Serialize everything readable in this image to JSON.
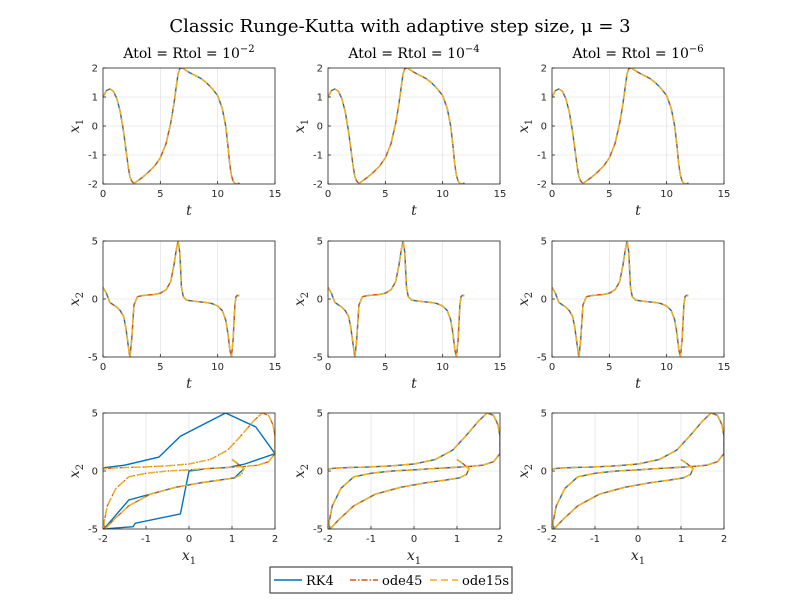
{
  "figure": {
    "title": "Classic Runge-Kutta with adaptive step size, μ = 3"
  },
  "colors": {
    "RK4": "#0072BD",
    "ode45": "#D95319",
    "ode15s": "#EDB120",
    "grid": "#dcdcdc",
    "axis": "#262626"
  },
  "legend": {
    "placement": "bottom-center",
    "entries": [
      {
        "label": "RK4",
        "style": "solid"
      },
      {
        "label": "ode45",
        "style": "dash-dot"
      },
      {
        "label": "ode15s",
        "style": "dashed"
      }
    ]
  },
  "chart_data": [
    {
      "type": "line",
      "column_title": "Atol = Rtol = 10",
      "column_title_exp": "−2",
      "xlabel": "t",
      "ylabel": "x1",
      "xlim": [
        0,
        15
      ],
      "ylim": [
        -2,
        2
      ],
      "xticks": [
        0,
        5,
        10,
        15
      ],
      "yticks": [
        -2,
        -1,
        0,
        1,
        2
      ],
      "grid": true,
      "series_source": "x1(t)",
      "coarse_rk4": false
    },
    {
      "type": "line",
      "column_title": "Atol = Rtol = 10",
      "column_title_exp": "−4",
      "xlabel": "t",
      "ylabel": "x1",
      "xlim": [
        0,
        15
      ],
      "ylim": [
        -2,
        2
      ],
      "xticks": [
        0,
        5,
        10,
        15
      ],
      "yticks": [
        -2,
        -1,
        0,
        1,
        2
      ],
      "grid": true,
      "series_source": "x1(t)",
      "coarse_rk4": false
    },
    {
      "type": "line",
      "column_title": "Atol = Rtol = 10",
      "column_title_exp": "−6",
      "xlabel": "t",
      "ylabel": "x1",
      "xlim": [
        0,
        15
      ],
      "ylim": [
        -2,
        2
      ],
      "xticks": [
        0,
        5,
        10,
        15
      ],
      "yticks": [
        -2,
        -1,
        0,
        1,
        2
      ],
      "grid": true,
      "series_source": "x1(t)",
      "coarse_rk4": false
    },
    {
      "type": "line",
      "xlabel": "t",
      "ylabel": "x2",
      "xlim": [
        0,
        15
      ],
      "ylim": [
        -5,
        5
      ],
      "xticks": [
        0,
        5,
        10,
        15
      ],
      "yticks": [
        -5,
        0,
        5
      ],
      "grid": true,
      "series_source": "x2(t)",
      "coarse_rk4": false
    },
    {
      "type": "line",
      "xlabel": "t",
      "ylabel": "x2",
      "xlim": [
        0,
        15
      ],
      "ylim": [
        -5,
        5
      ],
      "xticks": [
        0,
        5,
        10,
        15
      ],
      "yticks": [
        -5,
        0,
        5
      ],
      "grid": true,
      "series_source": "x2(t)",
      "coarse_rk4": false
    },
    {
      "type": "line",
      "xlabel": "t",
      "ylabel": "x2",
      "xlim": [
        0,
        15
      ],
      "ylim": [
        -5,
        5
      ],
      "xticks": [
        0,
        5,
        10,
        15
      ],
      "yticks": [
        -5,
        0,
        5
      ],
      "grid": true,
      "series_source": "x2(t)",
      "coarse_rk4": false
    },
    {
      "type": "line",
      "xlabel": "x1",
      "ylabel": "x2",
      "xlim": [
        -2,
        2
      ],
      "ylim": [
        -5,
        5
      ],
      "xticks": [
        -2,
        -1,
        0,
        1,
        2
      ],
      "yticks": [
        -5,
        0,
        5
      ],
      "grid": true,
      "series_source": "phase",
      "coarse_rk4": true
    },
    {
      "type": "line",
      "xlabel": "x1",
      "ylabel": "x2",
      "xlim": [
        -2,
        2
      ],
      "ylim": [
        -5,
        5
      ],
      "xticks": [
        -2,
        -1,
        0,
        1,
        2
      ],
      "yticks": [
        -5,
        0,
        5
      ],
      "grid": true,
      "series_source": "phase",
      "coarse_rk4": false
    },
    {
      "type": "line",
      "xlabel": "x1",
      "ylabel": "x2",
      "xlim": [
        -2,
        2
      ],
      "ylim": [
        -5,
        5
      ],
      "xticks": [
        -2,
        -1,
        0,
        1,
        2
      ],
      "yticks": [
        -5,
        0,
        5
      ],
      "grid": true,
      "series_source": "phase",
      "coarse_rk4": false
    }
  ],
  "curves": {
    "t": [
      0,
      0.3,
      0.6,
      0.9,
      1.2,
      1.5,
      1.8,
      2.0,
      2.2,
      2.35,
      2.5,
      2.7,
      3.0,
      3.5,
      4.0,
      4.5,
      5.0,
      5.5,
      5.9,
      6.2,
      6.4,
      6.55,
      6.7,
      6.85,
      7.0,
      7.3,
      7.6,
      8.0,
      8.5,
      9.0,
      9.5,
      10.0,
      10.4,
      10.7,
      10.9,
      11.05,
      11.2,
      11.35,
      11.5,
      11.6,
      11.7,
      11.8,
      11.9
    ],
    "x1": [
      1.0,
      1.22,
      1.28,
      1.2,
      0.95,
      0.5,
      -0.2,
      -0.8,
      -1.4,
      -1.75,
      -1.9,
      -1.98,
      -1.9,
      -1.75,
      -1.58,
      -1.38,
      -1.1,
      -0.6,
      0.1,
      0.8,
      1.4,
      1.8,
      1.98,
      2.0,
      1.98,
      1.9,
      1.83,
      1.75,
      1.65,
      1.5,
      1.3,
      1.05,
      0.6,
      0.0,
      -0.7,
      -1.3,
      -1.7,
      -1.9,
      -1.98,
      -2.0,
      -1.99,
      -1.98,
      -1.97
    ],
    "x2": [
      1.0,
      0.5,
      -0.3,
      -0.5,
      -0.7,
      -1.0,
      -1.5,
      -2.5,
      -4.0,
      -5.0,
      -3.5,
      -0.5,
      0.2,
      0.3,
      0.35,
      0.4,
      0.5,
      0.8,
      1.5,
      3.0,
      4.3,
      5.0,
      4.0,
      1.0,
      0.2,
      -0.1,
      -0.15,
      -0.2,
      -0.25,
      -0.3,
      -0.4,
      -0.6,
      -1.0,
      -1.8,
      -3.0,
      -4.3,
      -5.0,
      -3.5,
      -0.5,
      0.2,
      0.3,
      0.3,
      0.3
    ],
    "phase_x1": [
      1.0,
      1.15,
      1.28,
      1.22,
      1.05,
      0.7,
      0.3,
      -0.3,
      -0.9,
      -1.4,
      -1.75,
      -1.95,
      -1.98,
      -1.9,
      -1.7,
      -1.4,
      -1.0,
      -0.5,
      0.0,
      0.4,
      0.9,
      1.3,
      1.6,
      1.85,
      2.0,
      2.0,
      1.95,
      1.85,
      1.7,
      1.5,
      1.2,
      0.9,
      0.5,
      0.0,
      -0.5,
      -1.0,
      -1.5,
      -1.8,
      -1.95,
      -2.0
    ],
    "phase_x2": [
      1.0,
      0.6,
      0.2,
      -0.3,
      -0.6,
      -0.8,
      -1.0,
      -1.4,
      -2.0,
      -3.0,
      -4.2,
      -5.0,
      -4.5,
      -3.0,
      -1.5,
      -0.5,
      -0.2,
      0.0,
      0.1,
      0.2,
      0.3,
      0.4,
      0.5,
      0.8,
      1.5,
      3.0,
      4.0,
      4.8,
      5.0,
      4.3,
      3.0,
      1.8,
      1.0,
      0.6,
      0.45,
      0.35,
      0.3,
      0.25,
      0.2,
      0.15
    ],
    "phase_rk4_coarse_x1": [
      1.0,
      1.28,
      1.05,
      0.3,
      -0.3,
      -1.4,
      -1.98,
      -1.3,
      -1.25,
      -0.2,
      0.0,
      0.4,
      0.9,
      1.3,
      2.0,
      1.55,
      0.85,
      -0.2,
      -0.7,
      -1.5,
      -1.95,
      -2.0
    ],
    "phase_rk4_coarse_x2": [
      1.0,
      0.2,
      -0.6,
      -1.0,
      -1.4,
      -2.5,
      -5.0,
      -4.8,
      -4.5,
      -3.7,
      0.0,
      0.2,
      0.3,
      0.6,
      1.5,
      3.8,
      5.0,
      3.0,
      1.2,
      0.5,
      0.3,
      0.2
    ]
  }
}
